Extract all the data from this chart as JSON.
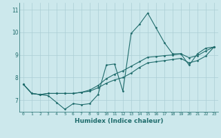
{
  "xlabel": "Humidex (Indice chaleur)",
  "ylabel": "",
  "xlim": [
    -0.5,
    23.5
  ],
  "ylim": [
    6.5,
    11.3
  ],
  "background_color": "#cce8ec",
  "line_color": "#1e6b6b",
  "grid_color": "#aacdd4",
  "xtick_labels": [
    "0",
    "1",
    "2",
    "3",
    "4",
    "5",
    "6",
    "7",
    "8",
    "9",
    "10",
    "11",
    "12",
    "13",
    "14",
    "15",
    "16",
    "17",
    "18",
    "19",
    "20",
    "21",
    "22",
    "23"
  ],
  "yticks": [
    7,
    8,
    9,
    10,
    11
  ],
  "series": [
    [
      7.7,
      7.3,
      7.25,
      7.2,
      6.9,
      6.6,
      6.85,
      6.8,
      6.85,
      7.25,
      8.55,
      8.6,
      7.4,
      9.95,
      10.35,
      10.85,
      10.2,
      9.55,
      9.05,
      9.05,
      8.55,
      9.05,
      9.3,
      9.35
    ],
    [
      7.7,
      7.3,
      7.25,
      7.3,
      7.3,
      7.3,
      7.3,
      7.35,
      7.45,
      7.65,
      7.95,
      8.15,
      8.3,
      8.5,
      8.7,
      8.9,
      8.93,
      8.97,
      9.0,
      9.05,
      8.88,
      8.97,
      9.18,
      9.35
    ],
    [
      7.7,
      7.3,
      7.25,
      7.3,
      7.3,
      7.3,
      7.3,
      7.35,
      7.4,
      7.55,
      7.75,
      7.9,
      8.0,
      8.2,
      8.45,
      8.65,
      8.7,
      8.75,
      8.8,
      8.85,
      8.65,
      8.75,
      8.95,
      9.35
    ]
  ]
}
